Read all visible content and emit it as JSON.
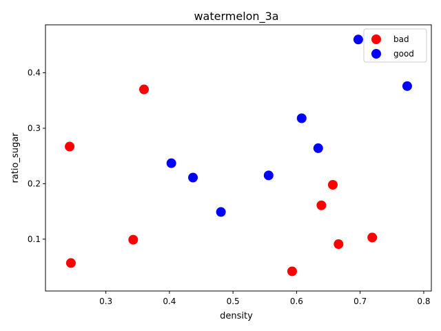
{
  "chart_data": {
    "type": "scatter",
    "title": "watermelon_3a",
    "xlabel": "density",
    "ylabel": "ratio_sugar",
    "xlim": [
      0.205,
      0.812
    ],
    "ylim": [
      0.0065,
      0.4865
    ],
    "xticks": [
      0.3,
      0.4,
      0.5,
      0.6,
      0.7,
      0.8
    ],
    "xtick_labels": [
      "0.3",
      "0.4",
      "0.5",
      "0.6",
      "0.7",
      "0.8"
    ],
    "yticks": [
      0.1,
      0.2,
      0.3,
      0.4
    ],
    "ytick_labels": [
      "0.1",
      "0.2",
      "0.3",
      "0.4"
    ],
    "grid": false,
    "legend_position": "top-right",
    "series": [
      {
        "name": "bad",
        "color": "#ff0000",
        "points": [
          {
            "x": 0.243,
            "y": 0.267
          },
          {
            "x": 0.245,
            "y": 0.057
          },
          {
            "x": 0.343,
            "y": 0.099
          },
          {
            "x": 0.36,
            "y": 0.37
          },
          {
            "x": 0.593,
            "y": 0.042
          },
          {
            "x": 0.639,
            "y": 0.161
          },
          {
            "x": 0.657,
            "y": 0.198
          },
          {
            "x": 0.666,
            "y": 0.091
          },
          {
            "x": 0.719,
            "y": 0.103
          }
        ]
      },
      {
        "name": "good",
        "color": "#0000ff",
        "points": [
          {
            "x": 0.403,
            "y": 0.237
          },
          {
            "x": 0.437,
            "y": 0.211
          },
          {
            "x": 0.481,
            "y": 0.149
          },
          {
            "x": 0.556,
            "y": 0.215
          },
          {
            "x": 0.608,
            "y": 0.318
          },
          {
            "x": 0.634,
            "y": 0.264
          },
          {
            "x": 0.697,
            "y": 0.46
          },
          {
            "x": 0.774,
            "y": 0.376
          }
        ]
      }
    ]
  }
}
